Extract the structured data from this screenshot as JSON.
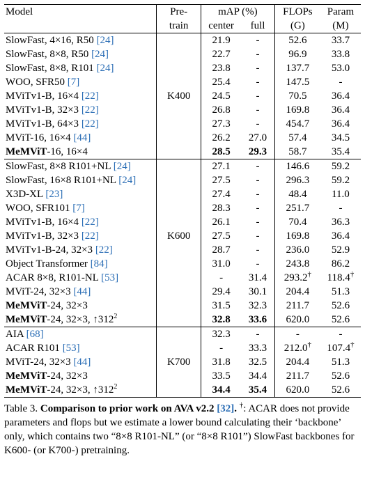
{
  "headers": {
    "model": "Model",
    "pretrain_line1": "Pre-",
    "pretrain_line2": "train",
    "map_line1": "mAP (%)",
    "center": "center",
    "full": "full",
    "flops_line1": "FLOPs",
    "flops_line2": "(G)",
    "param_line1": "Param",
    "param_line2": "(M)"
  },
  "groups": [
    {
      "pretrain": "K400",
      "rows": [
        {
          "name": "SlowFast, 4×16, R50 ",
          "ref": "[24]",
          "center": "21.9",
          "full": "-",
          "flops": "52.6",
          "param": "33.7"
        },
        {
          "name": "SlowFast, 8×8, R50 ",
          "ref": "[24]",
          "center": "22.7",
          "full": "-",
          "flops": "96.9",
          "param": "33.8"
        },
        {
          "name": "SlowFast, 8×8, R101 ",
          "ref": "[24]",
          "center": "23.8",
          "full": "-",
          "flops": "137.7",
          "param": "53.0"
        },
        {
          "name": "WOO, SFR50 ",
          "ref": "[7]",
          "center": "25.4",
          "full": "-",
          "flops": "147.5",
          "param": "-"
        },
        {
          "name": "MViTv1-B, 16×4 ",
          "ref": "[22]",
          "center": "24.5",
          "full": "-",
          "flops": "70.5",
          "param": "36.4"
        },
        {
          "name": "MViTv1-B, 32×3 ",
          "ref": "[22]",
          "center": "26.8",
          "full": "-",
          "flops": "169.8",
          "param": "36.4"
        },
        {
          "name": "MViTv1-B, 64×3 ",
          "ref": "[22]",
          "center": "27.3",
          "full": "-",
          "flops": "454.7",
          "param": "36.4"
        },
        {
          "name": "MViT-16, 16×4 ",
          "ref": "[44]",
          "center": "26.2",
          "full": "27.0",
          "flops": "57.4",
          "param": "34.5"
        },
        {
          "bold_name": "MeMViT",
          "name": "-16, 16×4",
          "ref": "",
          "center": "28.5",
          "full": "29.3",
          "flops": "58.7",
          "param": "35.4",
          "bold_center": true,
          "bold_full": true
        }
      ]
    },
    {
      "pretrain": "K600",
      "rows": [
        {
          "name": "SlowFast, 8×8 R101+NL ",
          "ref": "[24]",
          "center": "27.1",
          "full": "-",
          "flops": "146.6",
          "param": "59.2"
        },
        {
          "name": "SlowFast, 16×8 R101+NL ",
          "ref": "[24]",
          "center": "27.5",
          "full": "-",
          "flops": "296.3",
          "param": "59.2"
        },
        {
          "name": "X3D-XL ",
          "ref": "[23]",
          "center": "27.4",
          "full": "-",
          "flops": "48.4",
          "param": "11.0"
        },
        {
          "name": "WOO, SFR101 ",
          "ref": "[7]",
          "center": "28.3",
          "full": "-",
          "flops": "251.7",
          "param": "-"
        },
        {
          "name": "MViTv1-B, 16×4 ",
          "ref": "[22]",
          "center": "26.1",
          "full": "-",
          "flops": "70.4",
          "param": "36.3"
        },
        {
          "name": "MViTv1-B, 32×3 ",
          "ref": "[22]",
          "center": "27.5",
          "full": "-",
          "flops": "169.8",
          "param": "36.4"
        },
        {
          "name": "MViTv1-B-24, 32×3 ",
          "ref": "[22]",
          "center": "28.7",
          "full": "-",
          "flops": "236.0",
          "param": "52.9"
        },
        {
          "name": "Object Transformer ",
          "ref": "[84]",
          "center": "31.0",
          "full": "-",
          "flops": "243.8",
          "param": "86.2"
        },
        {
          "name": "ACAR 8×8, R101-NL ",
          "ref": "[53]",
          "center": "-",
          "full": "31.4",
          "flops": "293.2",
          "flops_mark": "†",
          "param": "118.4",
          "param_mark": "†"
        },
        {
          "name": "MViT-24, 32×3 ",
          "ref": "[44]",
          "center": "29.4",
          "full": "30.1",
          "flops": "204.4",
          "param": "51.3"
        },
        {
          "bold_name": "MeMViT",
          "name": "-24, 32×3",
          "ref": "",
          "center": "31.5",
          "full": "32.3",
          "flops": "211.7",
          "param": "52.6"
        },
        {
          "bold_name": "MeMViT",
          "name": "-24, 32×3, ↑312",
          "sup": "2",
          "ref": "",
          "center": "32.8",
          "full": "33.6",
          "flops": "620.0",
          "param": "52.6",
          "bold_center": true,
          "bold_full": true
        }
      ]
    },
    {
      "pretrain": "K700",
      "rows": [
        {
          "name": "AIA ",
          "ref": "[68]",
          "center": "32.3",
          "full": "-",
          "flops": "-",
          "param": "-"
        },
        {
          "name": "ACAR R101 ",
          "ref": "[53]",
          "center": "-",
          "full": "33.3",
          "flops": "212.0",
          "flops_mark": "†",
          "param": "107.4",
          "param_mark": "†"
        },
        {
          "name": "MViT-24, 32×3 ",
          "ref": "[44]",
          "center": "31.8",
          "full": "32.5",
          "flops": "204.4",
          "param": "51.3"
        },
        {
          "bold_name": "MeMViT",
          "name": "-24, 32×3",
          "ref": "",
          "center": "33.5",
          "full": "34.4",
          "flops": "211.7",
          "param": "52.6"
        },
        {
          "bold_name": "MeMViT",
          "name": "-24, 32×3, ↑312",
          "sup": "2",
          "ref": "",
          "center": "34.4",
          "full": "35.4",
          "flops": "620.0",
          "param": "52.6",
          "bold_center": true,
          "bold_full": true
        }
      ]
    }
  ],
  "caption": {
    "label": "Table 3. ",
    "title": "Comparison to prior work on AVA v2.2 ",
    "title_ref": "[32]",
    "title_end": ".",
    "dagger": "†",
    "body": ": ACAR does not provide parameters and flops but we estimate a lower bound calculating their ‘backbone’ only, which contains two “8×8 R101-NL” (or “8×8 R101”) SlowFast backbones for K600- (or K700-) pretraining."
  }
}
